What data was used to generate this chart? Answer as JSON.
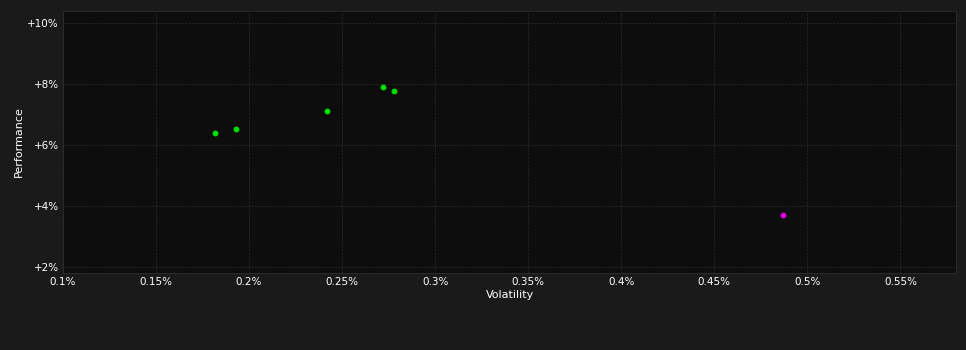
{
  "background_color": "#1a1a1a",
  "plot_bg_color": "#0d0d0d",
  "grid_color": "#2a2a2a",
  "text_color": "#ffffff",
  "xlabel": "Volatility",
  "ylabel": "Performance",
  "xlim": [
    0.001,
    0.0058
  ],
  "ylim": [
    0.018,
    0.104
  ],
  "xticks": [
    0.001,
    0.0015,
    0.002,
    0.0025,
    0.003,
    0.0035,
    0.004,
    0.0045,
    0.005,
    0.0055
  ],
  "xticklabels": [
    "0.1%",
    "0.15%",
    "0.2%",
    "0.25%",
    "0.3%",
    "0.35%",
    "0.4%",
    "0.45%",
    "0.5%",
    "0.55%"
  ],
  "yticks": [
    0.02,
    0.04,
    0.06,
    0.08,
    0.1
  ],
  "yticklabels": [
    "+2%",
    "+4%",
    "+6%",
    "+8%",
    "+10%"
  ],
  "green_points": [
    [
      0.00182,
      0.064
    ],
    [
      0.00193,
      0.0652
    ],
    [
      0.00242,
      0.0712
    ],
    [
      0.00272,
      0.079
    ],
    [
      0.00278,
      0.0775
    ]
  ],
  "magenta_points": [
    [
      0.00487,
      0.037
    ]
  ],
  "point_size": 18,
  "green_color": "#00dd00",
  "magenta_color": "#dd00dd"
}
